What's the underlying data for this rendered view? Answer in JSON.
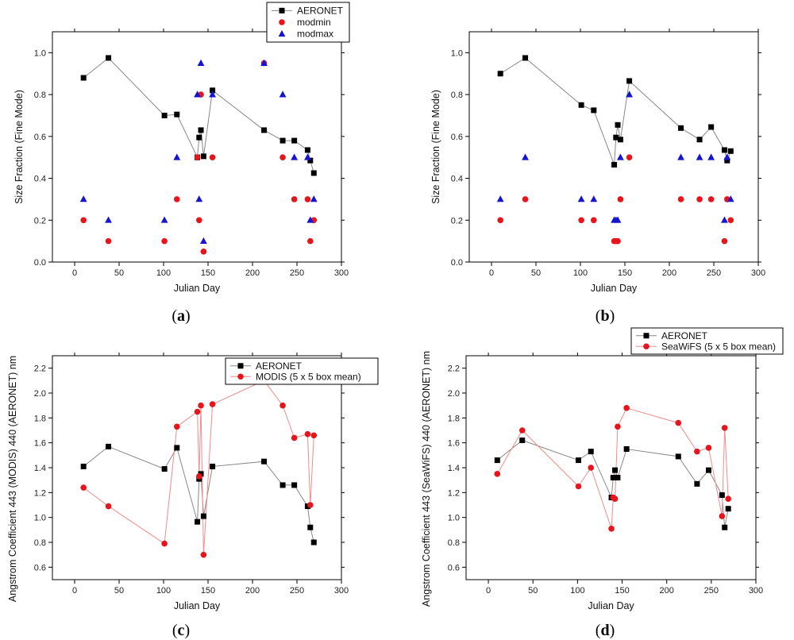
{
  "panel_labels": [
    {
      "open": "(",
      "letter": "a",
      "close": ")"
    },
    {
      "open": "(",
      "letter": "b",
      "close": ")"
    },
    {
      "open": "(",
      "letter": "c",
      "close": ")"
    },
    {
      "open": "(",
      "letter": "d",
      "close": ")"
    }
  ],
  "colors": {
    "aeronet": "#000000",
    "red": "#e8141b",
    "blue": "#1515d0",
    "line_black": "#888888",
    "line_red": "#f08c8c"
  },
  "chart_data": [
    {
      "type": "scatter",
      "xlabel": "Julian Day",
      "ylabel": "Size Fraction (Fine Mode)",
      "xlim": [
        -25,
        300
      ],
      "ylim": [
        0,
        1.1
      ],
      "xticks": [
        "0",
        "50",
        "100",
        "150",
        "200",
        "250",
        "300"
      ],
      "yticks": [
        "0.0",
        "0.2",
        "0.4",
        "0.6",
        "0.8",
        "1.0"
      ],
      "legend": {
        "placement": "top-right, outside above plot",
        "entries": [
          "AERONET",
          "modmin",
          "modmax"
        ]
      },
      "series": [
        {
          "name": "AERONET",
          "marker": "square",
          "connected": true,
          "points": [
            [
              10,
              0.88
            ],
            [
              38,
              0.975
            ],
            [
              101,
              0.7
            ],
            [
              115,
              0.705
            ],
            [
              138,
              0.5
            ],
            [
              140,
              0.595
            ],
            [
              142,
              0.63
            ],
            [
              145,
              0.505
            ],
            [
              155,
              0.82
            ],
            [
              213,
              0.63
            ],
            [
              234,
              0.58
            ],
            [
              247,
              0.58
            ],
            [
              262,
              0.535
            ],
            [
              265,
              0.485
            ],
            [
              269,
              0.425
            ]
          ]
        },
        {
          "name": "modmin",
          "marker": "circle",
          "connected": false,
          "points": [
            [
              10,
              0.2
            ],
            [
              38,
              0.1
            ],
            [
              101,
              0.1
            ],
            [
              115,
              0.3
            ],
            [
              138,
              0.5
            ],
            [
              140,
              0.2
            ],
            [
              142,
              0.8
            ],
            [
              145,
              0.05
            ],
            [
              155,
              0.5
            ],
            [
              213,
              0.95
            ],
            [
              234,
              0.5
            ],
            [
              247,
              0.3
            ],
            [
              262,
              0.3
            ],
            [
              265,
              0.1
            ],
            [
              269,
              0.2
            ]
          ]
        },
        {
          "name": "modmax",
          "marker": "triangle",
          "connected": false,
          "points": [
            [
              10,
              0.3
            ],
            [
              38,
              0.2
            ],
            [
              101,
              0.2
            ],
            [
              115,
              0.5
            ],
            [
              138,
              0.8
            ],
            [
              140,
              0.3
            ],
            [
              142,
              0.95
            ],
            [
              145,
              0.1
            ],
            [
              155,
              0.8
            ],
            [
              213,
              0.95
            ],
            [
              234,
              0.8
            ],
            [
              247,
              0.5
            ],
            [
              262,
              0.5
            ],
            [
              265,
              0.2
            ],
            [
              269,
              0.3
            ]
          ]
        }
      ]
    },
    {
      "type": "scatter",
      "xlabel": "Julian Day",
      "ylabel": "Size Fraction (Fine Mode)",
      "xlim": [
        -25,
        300
      ],
      "ylim": [
        0,
        1.1
      ],
      "xticks": [
        "0",
        "50",
        "100",
        "150",
        "200",
        "250",
        "300"
      ],
      "yticks": [
        "0.0",
        "0.2",
        "0.4",
        "0.6",
        "0.8",
        "1.0"
      ],
      "series": [
        {
          "name": "",
          "marker": "square",
          "connected": true,
          "points": [
            [
              10,
              0.9
            ],
            [
              38,
              0.975
            ],
            [
              101,
              0.75
            ],
            [
              115,
              0.725
            ],
            [
              138,
              0.465
            ],
            [
              140,
              0.595
            ],
            [
              142,
              0.655
            ],
            [
              145,
              0.585
            ],
            [
              155,
              0.865
            ],
            [
              213,
              0.64
            ],
            [
              234,
              0.585
            ],
            [
              247,
              0.645
            ],
            [
              262,
              0.535
            ],
            [
              265,
              0.485
            ],
            [
              269,
              0.53
            ]
          ]
        },
        {
          "name": "",
          "marker": "circle",
          "connected": false,
          "points": [
            [
              10,
              0.2
            ],
            [
              38,
              0.3
            ],
            [
              101,
              0.2
            ],
            [
              115,
              0.2
            ],
            [
              138,
              0.1
            ],
            [
              140,
              0.1
            ],
            [
              142,
              0.1
            ],
            [
              145,
              0.3
            ],
            [
              155,
              0.5
            ],
            [
              213,
              0.3
            ],
            [
              234,
              0.3
            ],
            [
              247,
              0.3
            ],
            [
              262,
              0.1
            ],
            [
              265,
              0.3
            ],
            [
              269,
              0.2
            ]
          ]
        },
        {
          "name": "",
          "marker": "triangle",
          "connected": false,
          "points": [
            [
              10,
              0.3
            ],
            [
              38,
              0.5
            ],
            [
              101,
              0.3
            ],
            [
              115,
              0.3
            ],
            [
              138,
              0.2
            ],
            [
              140,
              0.2
            ],
            [
              142,
              0.2
            ],
            [
              145,
              0.5
            ],
            [
              155,
              0.8
            ],
            [
              213,
              0.5
            ],
            [
              234,
              0.5
            ],
            [
              247,
              0.5
            ],
            [
              262,
              0.2
            ],
            [
              265,
              0.5
            ],
            [
              269,
              0.3
            ]
          ]
        }
      ]
    },
    {
      "type": "line",
      "xlabel": "Julian Day",
      "ylabel": "Angstrom Coefficient 443 (MODIS) 440 (AERONET) nm",
      "xlim": [
        -25,
        300
      ],
      "ylim": [
        0.5,
        2.3
      ],
      "xticks": [
        "0",
        "50",
        "100",
        "150",
        "200",
        "250",
        "300"
      ],
      "yticks": [
        "0.6",
        "0.8",
        "1.0",
        "1.2",
        "1.4",
        "1.6",
        "1.8",
        "2.0",
        "2.2"
      ],
      "legend": {
        "placement": "top-right, outside above plot",
        "entries": [
          "AERONET",
          "MODIS (5 x 5 box mean)"
        ]
      },
      "series": [
        {
          "name": "AERONET",
          "marker": "square",
          "connected": true,
          "points": [
            [
              10,
              1.41
            ],
            [
              38,
              1.57
            ],
            [
              101,
              1.39
            ],
            [
              115,
              1.56
            ],
            [
              138,
              0.965
            ],
            [
              140,
              1.31
            ],
            [
              142,
              1.35
            ],
            [
              145,
              1.01
            ],
            [
              155,
              1.41
            ],
            [
              213,
              1.45
            ],
            [
              234,
              1.26
            ],
            [
              247,
              1.26
            ],
            [
              262,
              1.09
            ],
            [
              265,
              0.92
            ],
            [
              269,
              0.8
            ]
          ]
        },
        {
          "name": "MODIS (5 x 5 box mean)",
          "marker": "circle",
          "connected": true,
          "points": [
            [
              10,
              1.24
            ],
            [
              38,
              1.09
            ],
            [
              101,
              0.79
            ],
            [
              115,
              1.73
            ],
            [
              138,
              1.85
            ],
            [
              140,
              1.33
            ],
            [
              142,
              1.9
            ],
            [
              145,
              0.7
            ],
            [
              155,
              1.91
            ],
            [
              213,
              2.1
            ],
            [
              234,
              1.9
            ],
            [
              247,
              1.64
            ],
            [
              262,
              1.67
            ],
            [
              265,
              1.1
            ],
            [
              269,
              1.66
            ]
          ]
        }
      ]
    },
    {
      "type": "line",
      "xlabel": "Julian Day",
      "ylabel": "Angstrom Coefficient 443 (SeaWiFS) 440 (AERONET) nm",
      "xlim": [
        -25,
        300
      ],
      "ylim": [
        0.5,
        2.3
      ],
      "xticks": [
        "0",
        "50",
        "100",
        "150",
        "200",
        "250",
        "300"
      ],
      "yticks": [
        "0.6",
        "0.8",
        "1.0",
        "1.2",
        "1.4",
        "1.6",
        "1.8",
        "2.0",
        "2.2"
      ],
      "legend": {
        "placement": "top-right, outside above plot",
        "entries": [
          "AERONET",
          "SeaWiFS (5 x 5 box mean)"
        ]
      },
      "series": [
        {
          "name": "AERONET",
          "marker": "square",
          "connected": true,
          "points": [
            [
              10,
              1.46
            ],
            [
              38,
              1.62
            ],
            [
              101,
              1.46
            ],
            [
              115,
              1.53
            ],
            [
              138,
              1.16
            ],
            [
              140,
              1.32
            ],
            [
              142,
              1.38
            ],
            [
              145,
              1.32
            ],
            [
              155,
              1.55
            ],
            [
              213,
              1.49
            ],
            [
              234,
              1.27
            ],
            [
              247,
              1.38
            ],
            [
              262,
              1.18
            ],
            [
              265,
              0.92
            ],
            [
              269,
              1.07
            ]
          ]
        },
        {
          "name": "SeaWiFS (5 x 5 box mean)",
          "marker": "circle",
          "connected": true,
          "points": [
            [
              10,
              1.35
            ],
            [
              38,
              1.7
            ],
            [
              101,
              1.25
            ],
            [
              115,
              1.4
            ],
            [
              138,
              0.91
            ],
            [
              140,
              1.16
            ],
            [
              142,
              1.15
            ],
            [
              145,
              1.73
            ],
            [
              155,
              1.88
            ],
            [
              213,
              1.76
            ],
            [
              234,
              1.53
            ],
            [
              247,
              1.56
            ],
            [
              262,
              1.01
            ],
            [
              265,
              1.72
            ],
            [
              269,
              1.15
            ]
          ]
        }
      ]
    }
  ]
}
